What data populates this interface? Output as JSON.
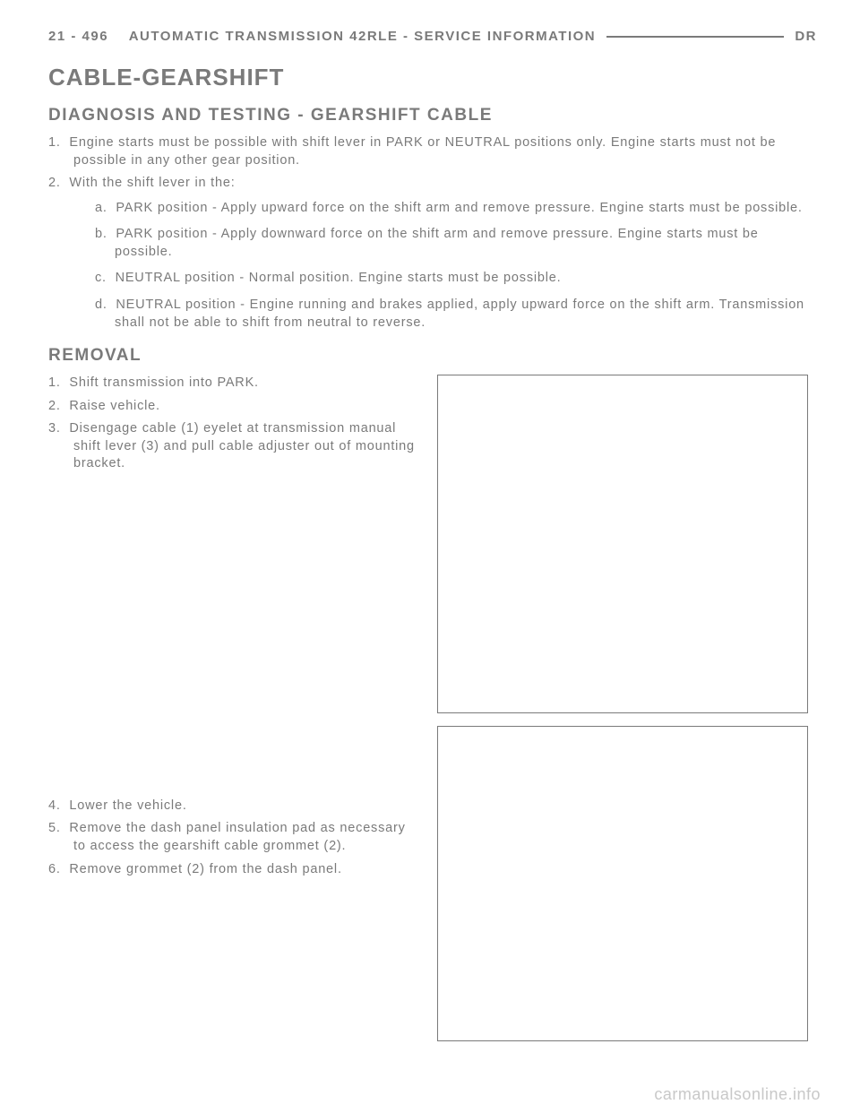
{
  "header": {
    "page_section": "21 - 496",
    "title": "AUTOMATIC TRANSMISSION 42RLE - SERVICE INFORMATION",
    "right": "DR"
  },
  "h1": "CABLE-GEARSHIFT",
  "diag": {
    "heading": "DIAGNOSIS AND TESTING - GEARSHIFT CABLE",
    "items": [
      {
        "num": "1.",
        "text": "Engine starts must be possible with shift lever in PARK or NEUTRAL positions only. Engine starts must not be possible in any other gear position."
      },
      {
        "num": "2.",
        "text": "With the shift lever in the:",
        "sub": [
          {
            "letter": "a.",
            "text": "PARK position - Apply upward force on the shift arm and remove pressure. Engine starts must be possible."
          },
          {
            "letter": "b.",
            "text": "PARK position - Apply downward force on the shift arm and remove pressure. Engine starts must be possible."
          },
          {
            "letter": "c.",
            "text": "NEUTRAL position - Normal position. Engine starts must be possible."
          },
          {
            "letter": "d.",
            "text": "NEUTRAL position - Engine running and brakes applied, apply upward force on the shift arm. Transmission shall not be able to shift from neutral to reverse."
          }
        ]
      }
    ]
  },
  "removal": {
    "heading": "REMOVAL",
    "block1": [
      {
        "num": "1.",
        "text": "Shift transmission into PARK."
      },
      {
        "num": "2.",
        "text": "Raise vehicle."
      },
      {
        "num": "3.",
        "text": "Disengage cable (1) eyelet at transmission manual shift lever (3) and pull cable adjuster out of mounting bracket."
      }
    ],
    "block2": [
      {
        "num": "4.",
        "text": "Lower the vehicle."
      },
      {
        "num": "5.",
        "text": "Remove the dash panel insulation pad as necessary to access the gearshift cable grommet (2)."
      },
      {
        "num": "6.",
        "text": "Remove grommet (2) from the dash panel."
      }
    ]
  },
  "watermark": "carmanualsonline.info",
  "colors": {
    "text": "#7a7a7a",
    "border": "#7a7a7a",
    "background": "#ffffff",
    "watermark": "#c8c8c8"
  }
}
